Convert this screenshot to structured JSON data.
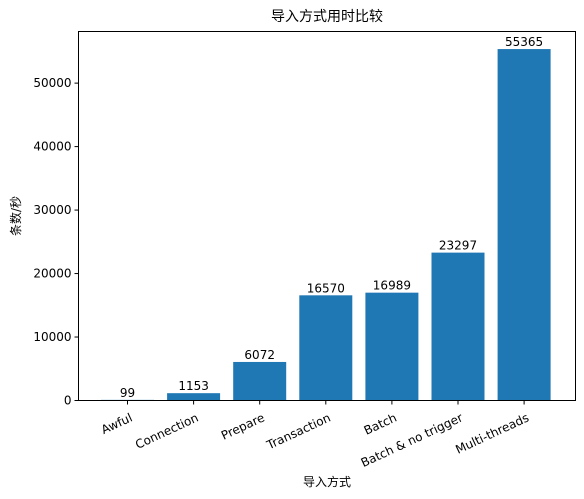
{
  "chart_data": {
    "type": "bar",
    "title": "导入方式用时比较",
    "xlabel": "导入方式",
    "ylabel": "条数/秒",
    "categories": [
      "Awful",
      "Connection",
      "Prepare",
      "Transaction",
      "Batch",
      "Batch & no trigger",
      "Multi-threads"
    ],
    "values": [
      99,
      1153,
      6072,
      16570,
      16989,
      23297,
      55365
    ],
    "data_labels": [
      "99",
      "1153",
      "6072",
      "16570",
      "16989",
      "23297",
      "55365"
    ],
    "yticks": [
      0,
      10000,
      20000,
      30000,
      40000,
      50000
    ],
    "ytick_labels": [
      "0",
      "10000",
      "20000",
      "30000",
      "40000",
      "50000"
    ],
    "ylim": [
      0,
      58133
    ],
    "grid": false,
    "bar_color": "#1f77b4"
  }
}
